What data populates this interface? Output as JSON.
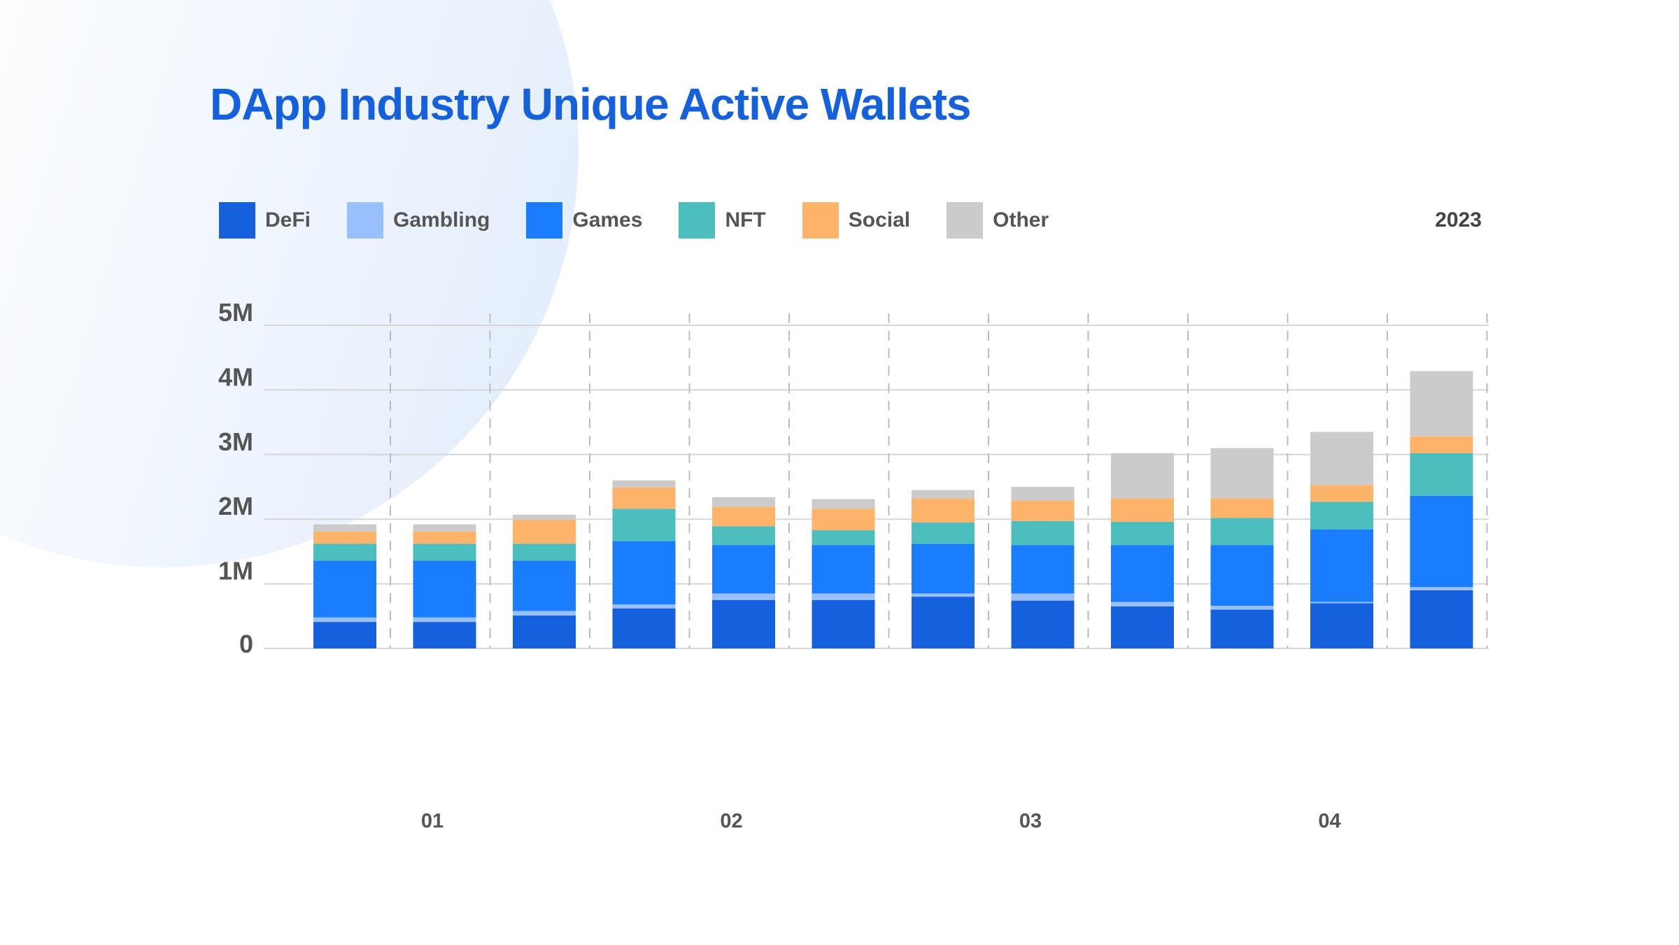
{
  "chart_data": {
    "type": "bar",
    "stacked": true,
    "title": "DApp Industry Unique Active Wallets",
    "period_label": "2023",
    "categories": [
      "1",
      "2",
      "3",
      "4",
      "5",
      "6",
      "7",
      "8",
      "9",
      "10",
      "11",
      "12"
    ],
    "x_tick_labels": [
      "01",
      "02",
      "03",
      "04"
    ],
    "y_tick_labels": [
      "0",
      "1M",
      "2M",
      "3M",
      "4M",
      "5M"
    ],
    "ylim": [
      0,
      5000000
    ],
    "grid": {
      "horizontal": true,
      "vertical_dashed": true
    },
    "legend_position": "top-left",
    "series": [
      {
        "name": "DeFi",
        "color": "#1560dc",
        "values": [
          410000,
          410000,
          510000,
          620000,
          750000,
          750000,
          800000,
          740000,
          650000,
          600000,
          700000,
          900000
        ]
      },
      {
        "name": "Gambling",
        "color": "#99c0fc",
        "values": [
          70000,
          70000,
          70000,
          60000,
          100000,
          100000,
          50000,
          110000,
          70000,
          60000,
          20000,
          50000
        ]
      },
      {
        "name": "Games",
        "color": "#1a7dfd",
        "values": [
          880000,
          880000,
          780000,
          980000,
          750000,
          750000,
          770000,
          750000,
          880000,
          940000,
          1120000,
          1410000
        ]
      },
      {
        "name": "NFT",
        "color": "#4cbebd",
        "values": [
          260000,
          260000,
          260000,
          500000,
          290000,
          230000,
          330000,
          370000,
          360000,
          420000,
          430000,
          660000
        ]
      },
      {
        "name": "Social",
        "color": "#feb36b",
        "values": [
          190000,
          190000,
          370000,
          330000,
          300000,
          330000,
          370000,
          320000,
          360000,
          300000,
          260000,
          260000
        ]
      },
      {
        "name": "Other",
        "color": "#cbcbcb",
        "values": [
          110000,
          110000,
          80000,
          110000,
          150000,
          150000,
          130000,
          210000,
          700000,
          780000,
          820000,
          1010000
        ]
      }
    ]
  }
}
